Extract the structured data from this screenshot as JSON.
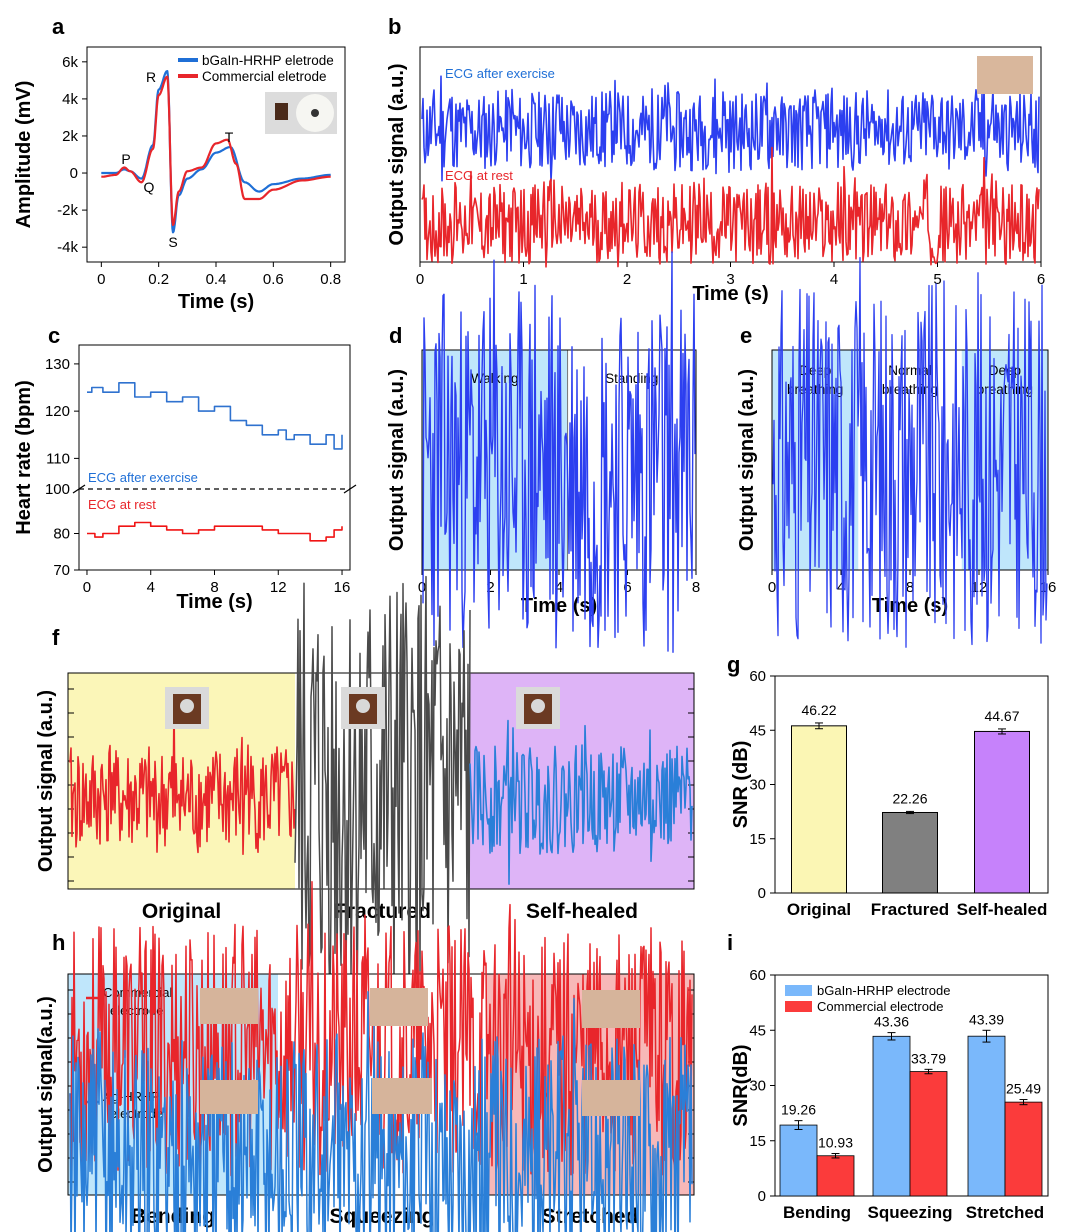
{
  "colors": {
    "blue_trace": "#2c3ff0",
    "red_trace": "#e8262b",
    "legend_blue": "#1f6fd6",
    "gray_trace": "#4a4a4a",
    "light_blue_bg": "#bfe6fb",
    "yellow_bg": "#fbf6b8",
    "purple_bg": "#deb4f7",
    "pink_bg": "#f7b8b8",
    "bar_yellow": "#fbf6b4",
    "bar_gray": "#808080",
    "bar_purple": "#c682fb",
    "bar_blue": "#7ab8fb",
    "bar_red": "#fb3b3b",
    "heart_blue": "#2f72cf",
    "heart_red": "#f01414"
  },
  "chart_data": [
    {
      "id": "a",
      "panel_letter": "a",
      "type": "line",
      "xlabel": "Time (s)",
      "ylabel": "Amplitude (mV)",
      "xlim": [
        -0.05,
        0.85
      ],
      "ylim": [
        -4.8,
        6.8
      ],
      "xticks": [
        0,
        0.2,
        0.4,
        0.6,
        0.8
      ],
      "xtick_labels": [
        "0",
        "0.2",
        "0.4",
        "0.6",
        "0.8"
      ],
      "yticks": [
        -4,
        -2,
        0,
        2,
        4,
        6
      ],
      "ytick_labels": [
        "-4k",
        "-2k",
        "0",
        "2k",
        "4k",
        "6k"
      ],
      "legend": [
        "bGaIn-HRHP eletrode",
        "Commercial eletrode"
      ],
      "legend_position": "top-right",
      "annotations": [
        "P",
        "Q",
        "R",
        "S",
        "T"
      ],
      "series": [
        {
          "name": "bGaIn-HRHP eletrode",
          "x": [
            0,
            0.05,
            0.08,
            0.1,
            0.14,
            0.18,
            0.2,
            0.23,
            0.25,
            0.27,
            0.3,
            0.35,
            0.4,
            0.45,
            0.5,
            0.55,
            0.6,
            0.7,
            0.8
          ],
          "y": [
            0,
            0,
            0.2,
            0.1,
            -0.3,
            1.5,
            4.5,
            5.5,
            -3.2,
            -1.2,
            -0.3,
            0.2,
            1.1,
            1.4,
            -0.5,
            -1.0,
            -0.6,
            -0.3,
            -0.1
          ]
        },
        {
          "name": "Commercial eletrode",
          "x": [
            0,
            0.05,
            0.08,
            0.1,
            0.14,
            0.18,
            0.2,
            0.23,
            0.25,
            0.27,
            0.3,
            0.35,
            0.4,
            0.44,
            0.47,
            0.5,
            0.55,
            0.6,
            0.7,
            0.8
          ],
          "y": [
            -0.2,
            -0.1,
            0.3,
            0.1,
            -0.5,
            1.3,
            4.2,
            5.2,
            -2.8,
            -1.0,
            0.1,
            0.3,
            1.6,
            1.8,
            0.5,
            -1.4,
            -1.4,
            -0.9,
            -0.4,
            -0.2
          ]
        }
      ]
    },
    {
      "id": "b",
      "panel_letter": "b",
      "type": "line",
      "xlabel": "Time (s)",
      "ylabel": "Output signal (a.u.)",
      "xlim": [
        0,
        6
      ],
      "xticks": [
        0,
        1,
        2,
        3,
        4,
        5,
        6
      ],
      "xtick_labels": [
        "0",
        "1",
        "2",
        "3",
        "4",
        "5",
        "6"
      ],
      "series": [
        {
          "name": "ECG after exercise",
          "peaks": [
            0.2,
            0.8,
            1.25,
            1.8,
            2.3,
            2.85,
            3.35,
            3.9,
            4.4,
            4.95,
            5.45,
            5.95
          ]
        },
        {
          "name": "ECG at rest",
          "peaks": [
            0.4,
            1.2,
            1.9,
            2.65,
            3.4,
            4.1,
            4.8,
            5.45
          ]
        }
      ]
    },
    {
      "id": "c",
      "panel_letter": "c",
      "type": "line",
      "xlabel": "Time (s)",
      "ylabel": "Heart rate (bpm)",
      "xlim": [
        -0.5,
        16.5
      ],
      "xticks": [
        0,
        4,
        8,
        12,
        16
      ],
      "xtick_labels": [
        "0",
        "4",
        "8",
        "12",
        "16"
      ],
      "ylim_upper": [
        105,
        134
      ],
      "ylim_lower": [
        70,
        90
      ],
      "yticks_upper": [
        110,
        120,
        130
      ],
      "yticks_lower": [
        70,
        80
      ],
      "break_value": "100",
      "series": [
        {
          "name": "ECG after exercise",
          "x": [
            0,
            0.3,
            1,
            2,
            3,
            4,
            5,
            6,
            7,
            8,
            9,
            10,
            11,
            12,
            12.5,
            13,
            14,
            15,
            15.5,
            16
          ],
          "y": [
            124,
            125,
            124,
            126,
            123,
            124,
            122,
            123,
            120,
            121,
            118,
            117,
            115,
            116,
            114,
            115,
            113,
            115,
            112,
            115
          ]
        },
        {
          "name": "ECG at rest",
          "x": [
            0,
            0.5,
            1,
            2,
            3,
            4,
            5,
            6,
            7,
            8,
            9,
            10,
            11,
            12,
            13,
            14,
            15,
            15.5,
            16
          ],
          "y": [
            80,
            79,
            80,
            82,
            83,
            82,
            81,
            80,
            81,
            82,
            82,
            82,
            81,
            80,
            80,
            78,
            79,
            81,
            82
          ]
        }
      ]
    },
    {
      "id": "d",
      "panel_letter": "d",
      "type": "line",
      "xlabel": "Time (s)",
      "ylabel": "Output signal (a.u.)",
      "xlim": [
        0,
        8
      ],
      "xticks": [
        0,
        2,
        4,
        6,
        8
      ],
      "xtick_labels": [
        "0",
        "2",
        "4",
        "6",
        "8"
      ],
      "regions": [
        {
          "label": "Walking",
          "x0": 0,
          "x1": 4.25
        },
        {
          "label": "Standing",
          "x0": 4.25,
          "x1": 8
        }
      ],
      "peaks": [
        0.1,
        0.5,
        0.9,
        1.3,
        1.7,
        2.1,
        2.5,
        2.9,
        3.3,
        3.7,
        4.1,
        4.6,
        5.1,
        5.6,
        6.2,
        6.8,
        7.3,
        7.8
      ]
    },
    {
      "id": "e",
      "panel_letter": "e",
      "type": "line",
      "xlabel": "Time (s)",
      "ylabel": "Output signal (a.u.)",
      "xlim": [
        0,
        16
      ],
      "xticks": [
        0,
        4,
        8,
        12,
        16
      ],
      "xtick_labels": [
        "0",
        "4",
        "8",
        "12",
        "16"
      ],
      "regions": [
        {
          "label": "Deep breathing",
          "x0": 0,
          "x1": 5.0
        },
        {
          "label": "Normal breathing",
          "x0": 5.0,
          "x1": 11.0
        },
        {
          "label": "Deep breathing",
          "x0": 11.0,
          "x1": 16
        }
      ]
    },
    {
      "id": "f",
      "panel_letter": "f",
      "type": "line",
      "ylabel": "Output signal (a.u.)",
      "categories": [
        "Original",
        "Fractured",
        "Self-healed"
      ]
    },
    {
      "id": "g",
      "panel_letter": "g",
      "type": "bar",
      "ylabel": "SNR (dB)",
      "ylim": [
        0,
        60
      ],
      "yticks": [
        0,
        15,
        30,
        45,
        60
      ],
      "categories": [
        "Original",
        "Fractured",
        "Self-healed"
      ],
      "values": [
        46.22,
        22.26,
        44.67
      ],
      "errors": [
        0.8,
        0.3,
        0.7
      ],
      "labels": [
        "46.22",
        "22.26",
        "44.67"
      ]
    },
    {
      "id": "h",
      "panel_letter": "h",
      "type": "line",
      "ylabel": "Output signal(a.u.)",
      "categories": [
        "Bending",
        "Squeezing",
        "Stretched"
      ],
      "legend": [
        "Commercial electrode",
        "Ag-HRHP electrode"
      ]
    },
    {
      "id": "i",
      "panel_letter": "i",
      "type": "bar",
      "ylabel": "SNR(dB)",
      "ylim": [
        0,
        60
      ],
      "yticks": [
        0,
        15,
        30,
        45,
        60
      ],
      "categories": [
        "Bending",
        "Squeezing",
        "Stretched"
      ],
      "legend": [
        "bGaIn-HRHP electrode",
        "Commercial electrode"
      ],
      "legend_position": "top-left",
      "series": [
        {
          "name": "bGaIn-HRHP electrode",
          "values": [
            19.26,
            43.36,
            43.39
          ],
          "errors": [
            1.2,
            1.0,
            1.6
          ],
          "labels": [
            "19.26",
            "43.36",
            "43.39"
          ]
        },
        {
          "name": "Commercial electrode",
          "values": [
            10.93,
            33.79,
            25.49
          ],
          "errors": [
            0.6,
            0.6,
            0.7
          ],
          "labels": [
            "10.93",
            "33.79",
            "25.49"
          ]
        }
      ]
    }
  ]
}
